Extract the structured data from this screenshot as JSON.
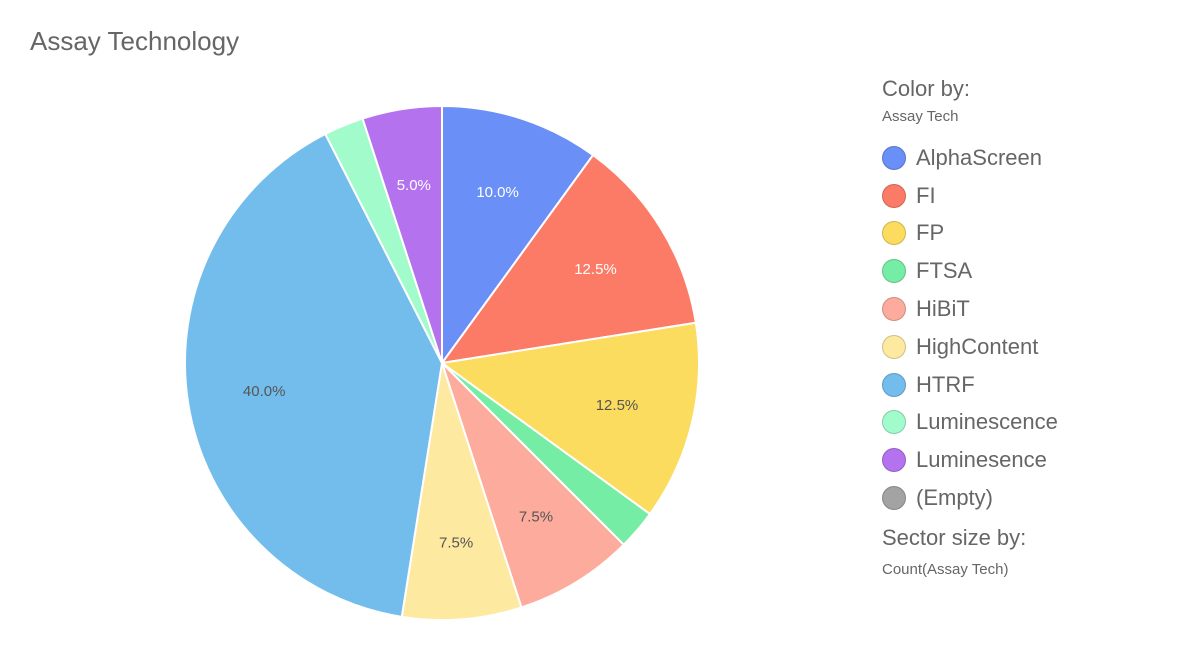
{
  "title": "Assay Technology",
  "legend": {
    "color_by_heading": "Color by:",
    "color_by_value": "Assay Tech",
    "items": [
      {
        "label": "AlphaScreen",
        "color": "#6a8ff7"
      },
      {
        "label": "FI",
        "color": "#fb7b66"
      },
      {
        "label": "FP",
        "color": "#fcdc5f"
      },
      {
        "label": "FTSA",
        "color": "#76eda4"
      },
      {
        "label": "HiBiT",
        "color": "#fcab9c"
      },
      {
        "label": "HighContent",
        "color": "#fde9a0"
      },
      {
        "label": "HTRF",
        "color": "#73bdec"
      },
      {
        "label": "Luminescence",
        "color": "#a2fbca"
      },
      {
        "label": "Luminesence",
        "color": "#b572ef"
      },
      {
        "label": "(Empty)",
        "color": "#a3a3a3"
      }
    ],
    "size_by_heading": "Sector size by:",
    "size_by_value": "Count(Assay Tech)"
  },
  "chart_data": {
    "type": "pie",
    "title": "Assay Technology",
    "start": "12 o'clock",
    "direction": "clockwise",
    "slices": [
      {
        "label": "AlphaScreen",
        "value": 10.0,
        "display": "10.0%",
        "color": "#6a8ff7",
        "text_color": "#ffffff"
      },
      {
        "label": "FI",
        "value": 12.5,
        "display": "12.5%",
        "color": "#fb7b66",
        "text_color": "#ffffff"
      },
      {
        "label": "FP",
        "value": 12.5,
        "display": "12.5%",
        "color": "#fcdc5f",
        "text_color": "#555555"
      },
      {
        "label": "FTSA",
        "value": 2.5,
        "display": "",
        "color": "#76eda4",
        "text_color": "#555555"
      },
      {
        "label": "HiBiT",
        "value": 7.5,
        "display": "7.5%",
        "color": "#fcab9c",
        "text_color": "#555555"
      },
      {
        "label": "HighContent",
        "value": 7.5,
        "display": "7.5%",
        "color": "#fde9a0",
        "text_color": "#555555"
      },
      {
        "label": "HTRF",
        "value": 40.0,
        "display": "40.0%",
        "color": "#73bdec",
        "text_color": "#555555"
      },
      {
        "label": "Luminescence",
        "value": 2.5,
        "display": "",
        "color": "#a2fbca",
        "text_color": "#555555"
      },
      {
        "label": "Luminesence",
        "value": 5.0,
        "display": "5.0%",
        "color": "#b572ef",
        "text_color": "#ffffff"
      }
    ]
  }
}
